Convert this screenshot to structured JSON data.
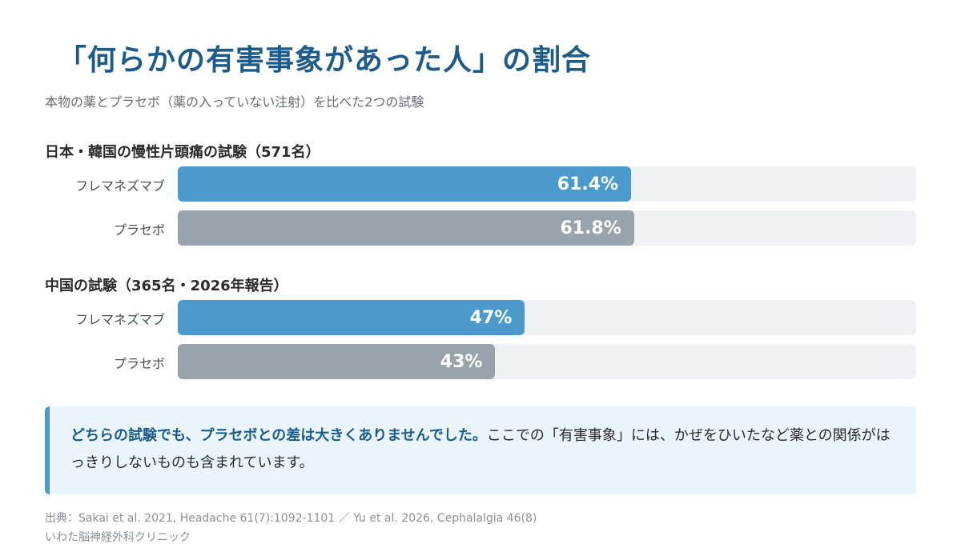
{
  "title": "「何らかの有害事象があった人」の割合",
  "subtitle": "本物の薬とプラセボ（薬の入っていない注射）を比べた2つの試験",
  "colors": {
    "active": "#4a9bcb",
    "placebo": "#98a3ab",
    "title": "#1d5c8a",
    "track": "#eff2f5"
  },
  "chart_data": {
    "type": "bar",
    "orientation": "horizontal",
    "xlim": [
      0,
      100
    ],
    "groups": [
      {
        "title": "日本・韓国の慢性片頭痛の試験（571名）",
        "bars": [
          {
            "label": "フレマネズマブ",
            "value": 61.4,
            "value_label": "61.4%"
          },
          {
            "label": "プラセボ",
            "value": 61.8,
            "value_label": "61.8%"
          }
        ]
      },
      {
        "title": "中国の試験（365名・2026年報告）",
        "bars": [
          {
            "label": "フレマネズマブ",
            "value": 47,
            "value_label": "47%"
          },
          {
            "label": "プラセボ",
            "value": 43,
            "value_label": "43%"
          }
        ]
      }
    ]
  },
  "note": {
    "emphasis": "どちらの試験でも、プラセボとの差は大きくありませんでした。",
    "text": "ここでの「有害事象」には、かぜをひいたなど薬との関係がはっきりしないものも含まれています。"
  },
  "footer": {
    "source": "出典：Sakai et al. 2021, Headache 61(7):1092-1101 ／ Yu et al. 2026, Cephalalgia 46(8)",
    "clinic": "いわた脳神経外科クリニック"
  }
}
